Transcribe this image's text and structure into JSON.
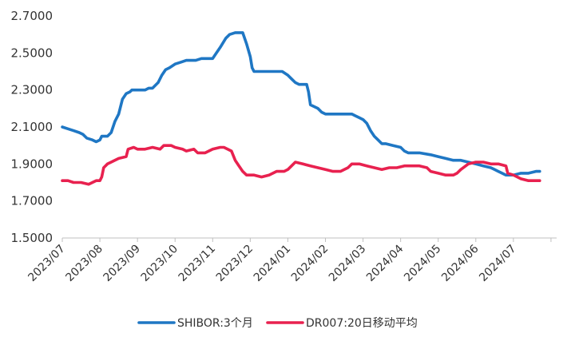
{
  "chart_data": {
    "type": "line",
    "title": "",
    "xlabel": "",
    "ylabel": "",
    "ylim": [
      1.5,
      2.7
    ],
    "y_ticks": [
      "1.5000",
      "1.7000",
      "1.9000",
      "2.1000",
      "2.3000",
      "2.5000",
      "2.7000"
    ],
    "y_tick_values": [
      1.5,
      1.7,
      1.9,
      2.1,
      2.3,
      2.5,
      2.7
    ],
    "x_categories": [
      "2023/07",
      "2023/08",
      "2023/09",
      "2023/10",
      "2023/11",
      "2023/12",
      "2024/01",
      "2024/02",
      "2024/03",
      "2024/04",
      "2024/05",
      "2024/06",
      "2024/07"
    ],
    "x_range_months": [
      0,
      13
    ],
    "grid": false,
    "legend_position": "bottom",
    "series": [
      {
        "name": "SHIBOR:3个月",
        "color": "#1f77c4",
        "points": [
          [
            0.0,
            2.1
          ],
          [
            0.15,
            2.09
          ],
          [
            0.3,
            2.08
          ],
          [
            0.45,
            2.07
          ],
          [
            0.55,
            2.06
          ],
          [
            0.65,
            2.04
          ],
          [
            0.8,
            2.03
          ],
          [
            0.9,
            2.02
          ],
          [
            1.0,
            2.03
          ],
          [
            1.05,
            2.05
          ],
          [
            1.2,
            2.05
          ],
          [
            1.3,
            2.07
          ],
          [
            1.4,
            2.13
          ],
          [
            1.5,
            2.17
          ],
          [
            1.6,
            2.25
          ],
          [
            1.7,
            2.28
          ],
          [
            1.8,
            2.29
          ],
          [
            1.85,
            2.3
          ],
          [
            2.0,
            2.3
          ],
          [
            2.2,
            2.3
          ],
          [
            2.3,
            2.31
          ],
          [
            2.4,
            2.31
          ],
          [
            2.55,
            2.34
          ],
          [
            2.65,
            2.38
          ],
          [
            2.75,
            2.41
          ],
          [
            2.85,
            2.42
          ],
          [
            3.0,
            2.44
          ],
          [
            3.15,
            2.45
          ],
          [
            3.3,
            2.46
          ],
          [
            3.45,
            2.46
          ],
          [
            3.55,
            2.46
          ],
          [
            3.7,
            2.47
          ],
          [
            3.9,
            2.47
          ],
          [
            4.0,
            2.47
          ],
          [
            4.1,
            2.5
          ],
          [
            4.2,
            2.53
          ],
          [
            4.35,
            2.58
          ],
          [
            4.45,
            2.6
          ],
          [
            4.6,
            2.61
          ],
          [
            4.8,
            2.61
          ],
          [
            4.9,
            2.55
          ],
          [
            5.0,
            2.48
          ],
          [
            5.05,
            2.42
          ],
          [
            5.1,
            2.4
          ],
          [
            5.3,
            2.4
          ],
          [
            5.6,
            2.4
          ],
          [
            5.85,
            2.4
          ],
          [
            6.0,
            2.38
          ],
          [
            6.1,
            2.36
          ],
          [
            6.2,
            2.34
          ],
          [
            6.3,
            2.33
          ],
          [
            6.5,
            2.33
          ],
          [
            6.55,
            2.29
          ],
          [
            6.6,
            2.22
          ],
          [
            6.7,
            2.21
          ],
          [
            6.8,
            2.2
          ],
          [
            6.9,
            2.18
          ],
          [
            7.0,
            2.17
          ],
          [
            7.2,
            2.17
          ],
          [
            7.5,
            2.17
          ],
          [
            7.7,
            2.17
          ],
          [
            7.8,
            2.16
          ],
          [
            7.9,
            2.15
          ],
          [
            8.0,
            2.14
          ],
          [
            8.1,
            2.12
          ],
          [
            8.2,
            2.08
          ],
          [
            8.3,
            2.05
          ],
          [
            8.4,
            2.03
          ],
          [
            8.5,
            2.01
          ],
          [
            8.6,
            2.01
          ],
          [
            8.8,
            2.0
          ],
          [
            9.0,
            1.99
          ],
          [
            9.1,
            1.97
          ],
          [
            9.2,
            1.96
          ],
          [
            9.5,
            1.96
          ],
          [
            9.8,
            1.95
          ],
          [
            10.0,
            1.94
          ],
          [
            10.2,
            1.93
          ],
          [
            10.4,
            1.92
          ],
          [
            10.6,
            1.92
          ],
          [
            10.8,
            1.91
          ],
          [
            11.0,
            1.9
          ],
          [
            11.2,
            1.89
          ],
          [
            11.4,
            1.88
          ],
          [
            11.5,
            1.87
          ],
          [
            11.6,
            1.86
          ],
          [
            11.7,
            1.85
          ],
          [
            11.8,
            1.84
          ],
          [
            11.9,
            1.84
          ],
          [
            12.0,
            1.84
          ],
          [
            12.2,
            1.85
          ],
          [
            12.4,
            1.85
          ],
          [
            12.6,
            1.86
          ],
          [
            12.7,
            1.86
          ]
        ]
      },
      {
        "name": "DR007:20日移动平均",
        "color": "#e8214f",
        "points": [
          [
            0.0,
            1.81
          ],
          [
            0.15,
            1.81
          ],
          [
            0.3,
            1.8
          ],
          [
            0.5,
            1.8
          ],
          [
            0.7,
            1.79
          ],
          [
            0.9,
            1.81
          ],
          [
            1.0,
            1.81
          ],
          [
            1.05,
            1.83
          ],
          [
            1.1,
            1.88
          ],
          [
            1.2,
            1.9
          ],
          [
            1.3,
            1.91
          ],
          [
            1.5,
            1.93
          ],
          [
            1.7,
            1.94
          ],
          [
            1.75,
            1.98
          ],
          [
            1.9,
            1.99
          ],
          [
            2.0,
            1.98
          ],
          [
            2.2,
            1.98
          ],
          [
            2.4,
            1.99
          ],
          [
            2.6,
            1.98
          ],
          [
            2.7,
            2.0
          ],
          [
            2.9,
            2.0
          ],
          [
            3.0,
            1.99
          ],
          [
            3.2,
            1.98
          ],
          [
            3.3,
            1.97
          ],
          [
            3.5,
            1.98
          ],
          [
            3.6,
            1.96
          ],
          [
            3.8,
            1.96
          ],
          [
            4.0,
            1.98
          ],
          [
            4.2,
            1.99
          ],
          [
            4.3,
            1.99
          ],
          [
            4.5,
            1.97
          ],
          [
            4.6,
            1.92
          ],
          [
            4.7,
            1.89
          ],
          [
            4.8,
            1.86
          ],
          [
            4.9,
            1.84
          ],
          [
            5.1,
            1.84
          ],
          [
            5.3,
            1.83
          ],
          [
            5.5,
            1.84
          ],
          [
            5.7,
            1.86
          ],
          [
            5.9,
            1.86
          ],
          [
            6.0,
            1.87
          ],
          [
            6.1,
            1.89
          ],
          [
            6.2,
            1.91
          ],
          [
            6.4,
            1.9
          ],
          [
            6.6,
            1.89
          ],
          [
            6.8,
            1.88
          ],
          [
            7.0,
            1.87
          ],
          [
            7.2,
            1.86
          ],
          [
            7.4,
            1.86
          ],
          [
            7.6,
            1.88
          ],
          [
            7.7,
            1.9
          ],
          [
            7.9,
            1.9
          ],
          [
            8.1,
            1.89
          ],
          [
            8.3,
            1.88
          ],
          [
            8.5,
            1.87
          ],
          [
            8.7,
            1.88
          ],
          [
            8.9,
            1.88
          ],
          [
            9.1,
            1.89
          ],
          [
            9.3,
            1.89
          ],
          [
            9.5,
            1.89
          ],
          [
            9.7,
            1.88
          ],
          [
            9.8,
            1.86
          ],
          [
            10.0,
            1.85
          ],
          [
            10.2,
            1.84
          ],
          [
            10.4,
            1.84
          ],
          [
            10.5,
            1.85
          ],
          [
            10.6,
            1.87
          ],
          [
            10.8,
            1.9
          ],
          [
            11.0,
            1.91
          ],
          [
            11.2,
            1.91
          ],
          [
            11.4,
            1.9
          ],
          [
            11.6,
            1.9
          ],
          [
            11.8,
            1.89
          ],
          [
            11.85,
            1.85
          ],
          [
            12.0,
            1.84
          ],
          [
            12.2,
            1.82
          ],
          [
            12.4,
            1.81
          ],
          [
            12.6,
            1.81
          ],
          [
            12.7,
            1.81
          ]
        ]
      }
    ]
  }
}
